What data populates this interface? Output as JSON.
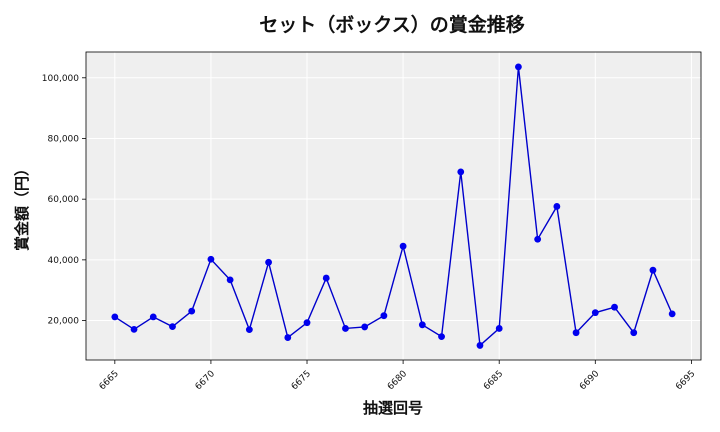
{
  "chart_data": {
    "type": "line",
    "title": "セット（ボックス）の賞金推移",
    "xlabel": "抽選回号",
    "ylabel": "賞金額（円）",
    "xlim": [
      6663.5,
      6695.5
    ],
    "ylim": [
      7000,
      108500
    ],
    "xticks": [
      6665,
      6670,
      6675,
      6680,
      6685,
      6690,
      6695
    ],
    "yticks": [
      20000,
      40000,
      60000,
      80000,
      100000
    ],
    "ytick_labels": [
      "20,000",
      "40,000",
      "60,000",
      "80,000",
      "100,000"
    ],
    "grid": true,
    "colors": {
      "line": "#0000cc",
      "marker": "#0000ee",
      "plot_bg": "#efefef",
      "grid": "#ffffff"
    },
    "x": [
      6665,
      6666,
      6667,
      6668,
      6669,
      6670,
      6671,
      6672,
      6673,
      6674,
      6675,
      6676,
      6677,
      6678,
      6679,
      6680,
      6681,
      6682,
      6683,
      6684,
      6685,
      6686,
      6687,
      6688,
      6689,
      6690,
      6691,
      6692,
      6693,
      6694
    ],
    "y": [
      21200,
      17100,
      21200,
      18000,
      23100,
      40200,
      33400,
      17000,
      39200,
      14400,
      19300,
      34000,
      17400,
      17900,
      21600,
      44500,
      18600,
      14700,
      69000,
      11800,
      17400,
      103600,
      46800,
      57600,
      16000,
      22600,
      24400,
      16000,
      36600,
      22200
    ]
  }
}
